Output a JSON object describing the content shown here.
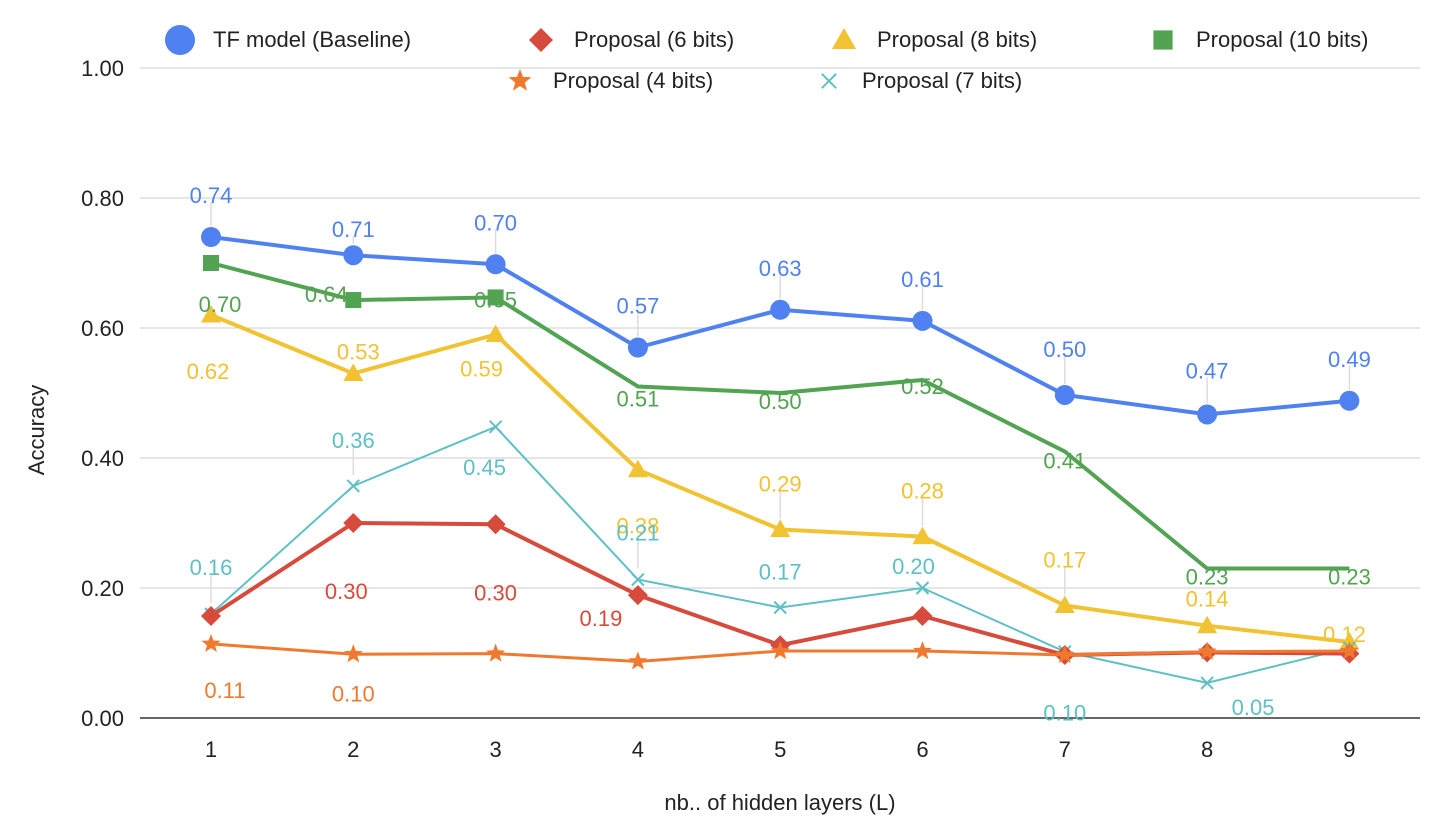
{
  "chart_data": {
    "type": "line",
    "title": "",
    "xlabel": "nb.. of hidden layers (L)",
    "ylabel": "Accuracy",
    "x": [
      "1",
      "2",
      "3",
      "4",
      "5",
      "6",
      "7",
      "8",
      "9"
    ],
    "ylim": [
      0,
      1
    ],
    "yticks": [
      "0.00",
      "0.20",
      "0.40",
      "0.60",
      "0.80",
      "1.00"
    ],
    "grid": true,
    "legend_position": "top",
    "series": [
      {
        "name": "TF model (Baseline)",
        "color": "#4F81F0",
        "marker": "circle",
        "values": [
          0.74,
          0.712,
          0.698,
          0.57,
          0.628,
          0.611,
          0.497,
          0.467,
          0.488
        ],
        "labels": [
          "0.74",
          "0.71",
          "0.70",
          "0.57",
          "0.63",
          "0.61",
          "0.50",
          "0.47",
          "0.49"
        ]
      },
      {
        "name": "Proposal (6 bits)",
        "color": "#D64B3C",
        "marker": "diamond",
        "values": [
          0.157,
          0.3,
          0.298,
          0.189,
          0.112,
          0.157,
          0.097,
          0.101,
          0.099
        ],
        "labels": [
          "",
          "0.30",
          "0.30",
          "0.19",
          "",
          "",
          "",
          "",
          ""
        ]
      },
      {
        "name": "Proposal (8 bits)",
        "color": "#F1C232",
        "marker": "triangle",
        "values": [
          0.62,
          0.53,
          0.59,
          0.382,
          0.29,
          0.279,
          0.173,
          0.142,
          0.117
        ],
        "labels": [
          "0.62",
          "0.53",
          "0.59",
          "0.38",
          "0.29",
          "0.28",
          "0.17",
          "0.14",
          "0.12"
        ]
      },
      {
        "name": "Proposal (10 bits)",
        "color": "#52A352",
        "marker": "square",
        "values": [
          0.7,
          0.643,
          0.647,
          null,
          null,
          null,
          null,
          null,
          null
        ],
        "values_line": [
          0.7,
          0.643,
          0.647,
          0.51,
          0.5,
          0.52,
          0.41,
          0.23,
          0.23
        ],
        "labels": [
          "0.70",
          "0.64",
          "0.65",
          "0.51",
          "0.50",
          "0.52",
          "0.41",
          "0.23",
          "0.23"
        ]
      },
      {
        "name": "Proposal (4 bits)",
        "color": "#EF7A2F",
        "marker": "star",
        "values": [
          0.114,
          0.098,
          0.099,
          0.087,
          0.103,
          0.103,
          0.097,
          0.102,
          0.103
        ],
        "labels": [
          "0.11",
          "0.10",
          "",
          "",
          "",
          "",
          "",
          "",
          ""
        ]
      },
      {
        "name": "Proposal (7 bits)",
        "color": "#5EC0C4",
        "marker": "x",
        "values": [
          0.16,
          0.357,
          0.448,
          0.213,
          0.17,
          0.2,
          0.102,
          0.054,
          0.108
        ],
        "labels": [
          "0.16",
          "0.36",
          "0.45",
          "0.21",
          "0.17",
          "0.20",
          "0.10",
          "0.05",
          ""
        ]
      }
    ]
  }
}
